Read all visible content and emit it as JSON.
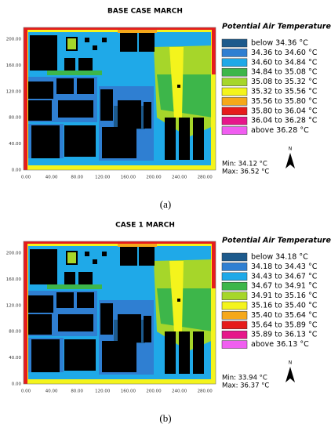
{
  "panels": [
    {
      "title": "BASE CASE  MARCH",
      "legend_title": "Potential Air Temperature",
      "legend": [
        {
          "label": "below 34.36 °C",
          "color": "#1d5a8c"
        },
        {
          "label": "34.36 to 34.60 °C",
          "color": "#2f7fd2"
        },
        {
          "label": "34.60 to 34.84 °C",
          "color": "#1fa9e8"
        },
        {
          "label": "34.84 to 35.08 °C",
          "color": "#3db64a"
        },
        {
          "label": "35.08 to 35.32 °C",
          "color": "#a6d62a"
        },
        {
          "label": "35.32 to 35.56 °C",
          "color": "#f4f41c"
        },
        {
          "label": "35.56 to 35.80 °C",
          "color": "#f5a81a"
        },
        {
          "label": "35.80 to 36.04 °C",
          "color": "#e61c1c"
        },
        {
          "label": "36.04 to 36.28 °C",
          "color": "#e6178a"
        },
        {
          "label": "above 36.28 °C",
          "color": "#f05ef0"
        }
      ],
      "min": "Min: 34.12 °C",
      "max": "Max: 36.52 °C",
      "north": "N",
      "x_ticks": [
        "0.00",
        "40.00",
        "80.00",
        "120.00",
        "160.00",
        "200.00",
        "240.00",
        "280.00"
      ],
      "y_ticks": [
        "200.00",
        "160.00",
        "120.00",
        "80.00",
        "40.00",
        "0.00"
      ],
      "caption": "(a)"
    },
    {
      "title": "CASE 1 MARCH",
      "legend_title": "Potential Air Temperature",
      "legend": [
        {
          "label": "below 34.18 °C",
          "color": "#1d5a8c"
        },
        {
          "label": "34.18 to 34.43 °C",
          "color": "#2f7fd2"
        },
        {
          "label": "34.43 to 34.67 °C",
          "color": "#1fa9e8"
        },
        {
          "label": "34.67 to 34.91 °C",
          "color": "#3db64a"
        },
        {
          "label": "34.91 to 35.16 °C",
          "color": "#a6d62a"
        },
        {
          "label": "35.16 to 35.40 °C",
          "color": "#f4f41c"
        },
        {
          "label": "35.40 to 35.64 °C",
          "color": "#f5a81a"
        },
        {
          "label": "35.64 to 35.89 °C",
          "color": "#e61c1c"
        },
        {
          "label": "35.89 to 36.13 °C",
          "color": "#e6178a"
        },
        {
          "label": "above 36.13 °C",
          "color": "#f05ef0"
        }
      ],
      "min": "Min: 33.94 °C",
      "max": "Max: 36.37 °C",
      "north": "N",
      "x_ticks": [
        "0.00",
        "40.00",
        "80.00",
        "120.00",
        "160.00",
        "200.00",
        "240.00",
        "280.00"
      ],
      "y_ticks": [
        "200.00",
        "160.00",
        "120.00",
        "80.00",
        "40.00",
        "0.00"
      ],
      "caption": "(b)"
    }
  ]
}
